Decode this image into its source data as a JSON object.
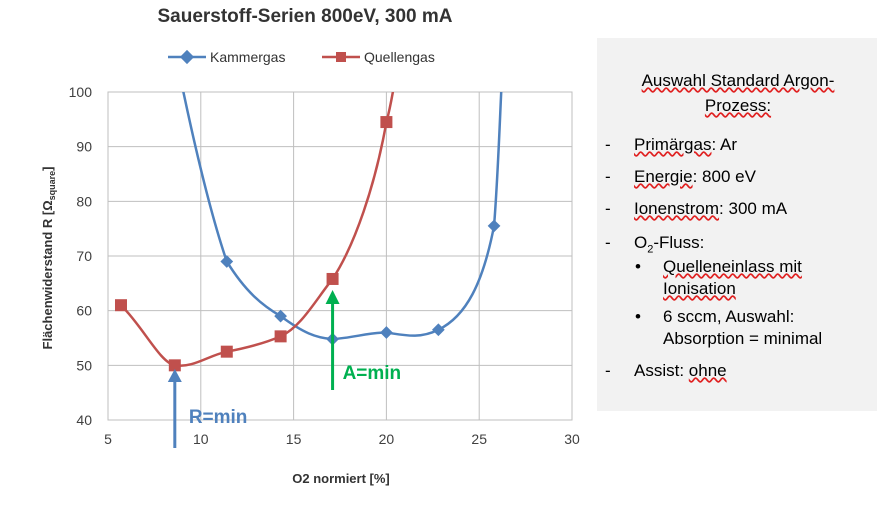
{
  "chart_data": {
    "type": "line",
    "title": "Sauerstoff-Serien  800eV, 300 mA",
    "xlabel": "O2  normiert [%]",
    "ylabel_main": "Flächenwiderstand R [Ω",
    "ylabel_sub": "square",
    "ylabel_close": "]",
    "xlim": [
      5,
      30
    ],
    "ylim": [
      40,
      100
    ],
    "xticks": [
      "5",
      "10",
      "15",
      "20",
      "25",
      "30"
    ],
    "yticks": [
      "40",
      "50",
      "60",
      "70",
      "80",
      "90",
      "100"
    ],
    "grid": true,
    "legend_position": "top",
    "series": [
      {
        "name": "Kammergas",
        "color": "#4f81bd",
        "marker": "diamond",
        "points": [
          [
            11.4,
            69
          ],
          [
            14.3,
            59
          ],
          [
            17.1,
            54.8
          ],
          [
            20.0,
            56
          ],
          [
            22.8,
            56.5
          ],
          [
            25.8,
            75.5
          ]
        ]
      },
      {
        "name": "Quellengas",
        "color": "#c0504d",
        "marker": "square",
        "points": [
          [
            5.7,
            61
          ],
          [
            8.6,
            50
          ],
          [
            11.4,
            52.5
          ],
          [
            14.3,
            55.3
          ],
          [
            17.1,
            65.8
          ],
          [
            20.0,
            94.5
          ]
        ]
      }
    ],
    "annotations": [
      {
        "text": "R=min",
        "color": "#4f81bd",
        "x": 8.6
      },
      {
        "text": "A=min",
        "color": "#00b050",
        "x": 17.1
      }
    ]
  },
  "panel": {
    "heading_line1": "Auswahl Standard   Argon-",
    "heading_line2": "Prozess:",
    "bullet": "-",
    "sub_bullet": "•",
    "primaergas_word": "Primärgas",
    "primaergas_rest": ":  Ar",
    "energie_word": "Energie",
    "energie_rest": ": 800 eV",
    "ionen_word": "Ionenstrom",
    "ionen_rest": ": 300 mA",
    "o2_o": "O",
    "o2_sub": "2",
    "o2_rest": "-Fluss:",
    "sub1_line1": "Quelleneinlass mit",
    "sub1_line2": "Ionisation",
    "sub2_line1": "6 sccm,  Auswahl:",
    "sub2_line2": "Absorption = minimal",
    "assist_label": "Assist: ",
    "assist_word": "ohne"
  }
}
